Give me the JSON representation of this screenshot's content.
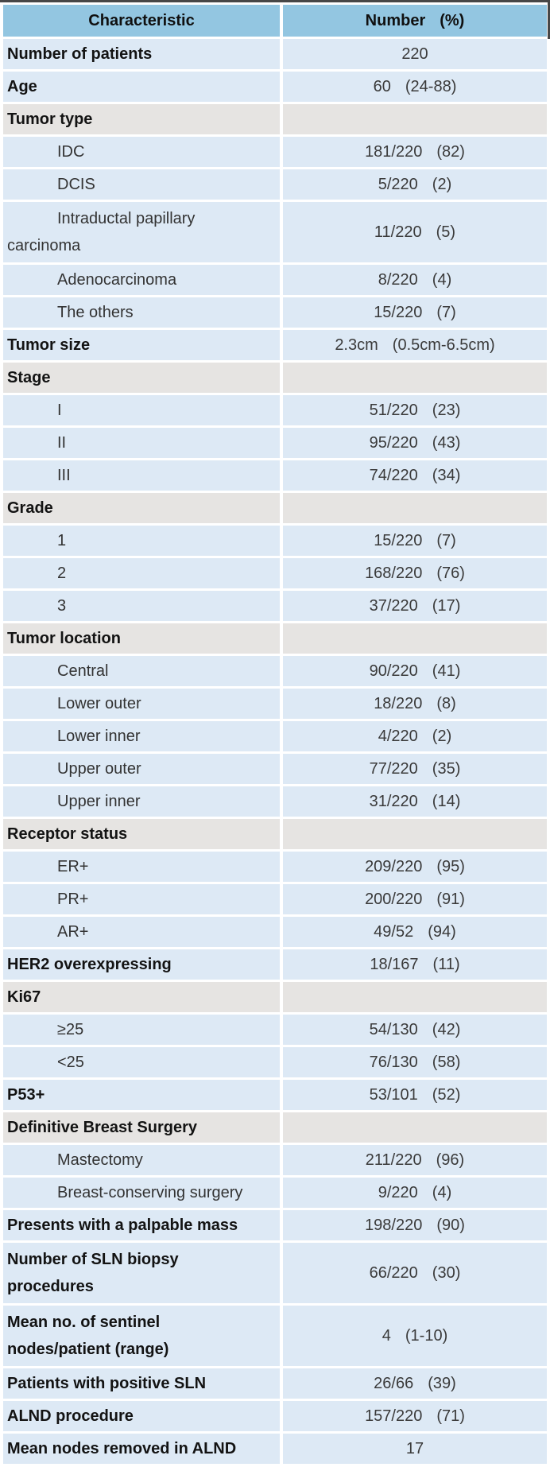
{
  "colors": {
    "header_bg": "#93c6e1",
    "row_bg": "#dde9f5",
    "section_bg": "#e6e4e2",
    "border_top": "#474747"
  },
  "header": {
    "characteristic": "Characteristic",
    "number": "Number",
    "percent": "(%)"
  },
  "rows": [
    {
      "type": "item",
      "lines": [
        "Number of patients"
      ],
      "num": "220",
      "pct": ""
    },
    {
      "type": "item",
      "lines": [
        "Age"
      ],
      "num": "60",
      "pct": "(24-88)"
    },
    {
      "type": "sec",
      "lines": [
        "Tumor type"
      ],
      "num": "",
      "pct": ""
    },
    {
      "type": "sub",
      "lines": [
        "IDC"
      ],
      "num": "181/220",
      "pct": "(82)"
    },
    {
      "type": "sub",
      "lines": [
        "DCIS"
      ],
      "num": "5/220",
      "pct": "(2)"
    },
    {
      "type": "sub",
      "lines": [
        "Intraductal papillary",
        "carcinoma"
      ],
      "num": "11/220",
      "pct": "(5)"
    },
    {
      "type": "sub",
      "lines": [
        "Adenocarcinoma"
      ],
      "num": "8/220",
      "pct": "(4)"
    },
    {
      "type": "sub",
      "lines": [
        "The others"
      ],
      "num": "15/220",
      "pct": "(7)"
    },
    {
      "type": "item",
      "lines": [
        "Tumor size"
      ],
      "num": "2.3cm",
      "pct": "(0.5cm-6.5cm)"
    },
    {
      "type": "sec",
      "lines": [
        "Stage"
      ],
      "num": "",
      "pct": ""
    },
    {
      "type": "sub",
      "lines": [
        "I"
      ],
      "num": "51/220",
      "pct": "(23)"
    },
    {
      "type": "sub",
      "lines": [
        "II"
      ],
      "num": "95/220",
      "pct": "(43)"
    },
    {
      "type": "sub",
      "lines": [
        "III"
      ],
      "num": "74/220",
      "pct": "(34)"
    },
    {
      "type": "sec",
      "lines": [
        "Grade"
      ],
      "num": "",
      "pct": ""
    },
    {
      "type": "sub",
      "lines": [
        "1"
      ],
      "num": "15/220",
      "pct": "(7)"
    },
    {
      "type": "sub",
      "lines": [
        "2"
      ],
      "num": "168/220",
      "pct": "(76)"
    },
    {
      "type": "sub",
      "lines": [
        "3"
      ],
      "num": "37/220",
      "pct": "(17)"
    },
    {
      "type": "sec",
      "lines": [
        "Tumor location"
      ],
      "num": "",
      "pct": ""
    },
    {
      "type": "sub",
      "lines": [
        "Central"
      ],
      "num": "90/220",
      "pct": "(41)"
    },
    {
      "type": "sub",
      "lines": [
        "Lower outer"
      ],
      "num": "18/220",
      "pct": "(8)"
    },
    {
      "type": "sub",
      "lines": [
        "Lower inner"
      ],
      "num": "4/220",
      "pct": "(2)"
    },
    {
      "type": "sub",
      "lines": [
        "Upper outer"
      ],
      "num": "77/220",
      "pct": "(35)"
    },
    {
      "type": "sub",
      "lines": [
        "Upper inner"
      ],
      "num": "31/220",
      "pct": "(14)"
    },
    {
      "type": "sec",
      "lines": [
        "Receptor status"
      ],
      "num": "",
      "pct": ""
    },
    {
      "type": "sub",
      "lines": [
        "ER+"
      ],
      "num": "209/220",
      "pct": "(95)"
    },
    {
      "type": "sub",
      "lines": [
        "PR+"
      ],
      "num": "200/220",
      "pct": "(91)"
    },
    {
      "type": "sub",
      "lines": [
        "AR+"
      ],
      "num": "49/52",
      "pct": "(94)"
    },
    {
      "type": "item",
      "lines": [
        "HER2 overexpressing"
      ],
      "num": "18/167",
      "pct": "(11)"
    },
    {
      "type": "sec",
      "lines": [
        "Ki67"
      ],
      "num": "",
      "pct": ""
    },
    {
      "type": "sub",
      "lines": [
        "≥25"
      ],
      "num": "54/130",
      "pct": "(42)"
    },
    {
      "type": "sub",
      "lines": [
        "<25"
      ],
      "num": "76/130",
      "pct": "(58)"
    },
    {
      "type": "item",
      "lines": [
        "P53+"
      ],
      "num": "53/101",
      "pct": "(52)"
    },
    {
      "type": "sec",
      "lines": [
        "Definitive Breast Surgery"
      ],
      "num": "",
      "pct": ""
    },
    {
      "type": "sub",
      "lines": [
        "Mastectomy"
      ],
      "num": "211/220",
      "pct": "(96)"
    },
    {
      "type": "sub",
      "lines": [
        "Breast-conserving surgery"
      ],
      "num": "9/220",
      "pct": "(4)"
    },
    {
      "type": "item",
      "lines": [
        "Presents with a palpable mass"
      ],
      "num": "198/220",
      "pct": "(90)"
    },
    {
      "type": "item",
      "lines": [
        "Number of SLN biopsy",
        "procedures"
      ],
      "num": "66/220",
      "pct": "(30)"
    },
    {
      "type": "item",
      "lines": [
        "Mean no. of sentinel",
        "nodes/patient (range)"
      ],
      "num": "4",
      "pct": "(1-10)"
    },
    {
      "type": "item",
      "lines": [
        "Patients with positive SLN"
      ],
      "num": "26/66",
      "pct": "(39)"
    },
    {
      "type": "item",
      "lines": [
        "ALND procedure"
      ],
      "num": "157/220",
      "pct": "(71)"
    },
    {
      "type": "item",
      "lines": [
        "Mean nodes removed in ALND"
      ],
      "num": "17",
      "pct": ""
    }
  ]
}
